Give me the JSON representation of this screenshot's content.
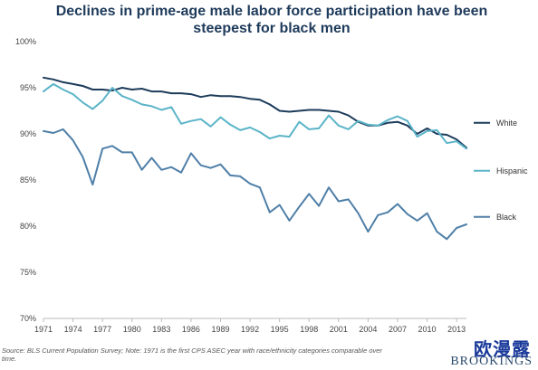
{
  "chart_data": {
    "type": "line",
    "title": "Declines in prime-age male labor force participation have been steepest for black men",
    "xlabel": "",
    "ylabel": "",
    "ylim": [
      70,
      100
    ],
    "xlim": [
      1971,
      2014
    ],
    "y_ticks": [
      70,
      75,
      80,
      85,
      90,
      95,
      100
    ],
    "y_tick_labels": [
      "70%",
      "75%",
      "80%",
      "85%",
      "90%",
      "95%",
      "100%"
    ],
    "x_ticks": [
      1971,
      1974,
      1977,
      1980,
      1983,
      1986,
      1989,
      1992,
      1995,
      1998,
      2001,
      2004,
      2007,
      2010,
      2013
    ],
    "x_tick_labels": [
      "1971",
      "1974",
      "1977",
      "1980",
      "1983",
      "1986",
      "1989",
      "1992",
      "1995",
      "1998",
      "2001",
      "2004",
      "2007",
      "2010",
      "2013"
    ],
    "grid": false,
    "legend": "right",
    "x": [
      1971,
      1972,
      1973,
      1974,
      1975,
      1976,
      1977,
      1978,
      1979,
      1980,
      1981,
      1982,
      1983,
      1984,
      1985,
      1986,
      1987,
      1988,
      1989,
      1990,
      1991,
      1992,
      1993,
      1994,
      1995,
      1996,
      1997,
      1998,
      1999,
      2000,
      2001,
      2002,
      2003,
      2004,
      2005,
      2006,
      2007,
      2008,
      2009,
      2010,
      2011,
      2012,
      2013,
      2014
    ],
    "series": [
      {
        "name": "White",
        "color": "#1c3b5a",
        "values": [
          96.1,
          95.9,
          95.6,
          95.4,
          95.2,
          94.8,
          94.8,
          94.7,
          95.0,
          94.8,
          94.9,
          94.6,
          94.6,
          94.4,
          94.4,
          94.3,
          94.0,
          94.2,
          94.1,
          94.1,
          94.0,
          93.8,
          93.7,
          93.2,
          92.5,
          92.4,
          92.5,
          92.6,
          92.6,
          92.5,
          92.4,
          92.0,
          91.3,
          90.9,
          90.9,
          91.2,
          91.3,
          90.9,
          90.0,
          90.6,
          90.0,
          89.9,
          89.4,
          88.5
        ]
      },
      {
        "name": "Hispanic",
        "color": "#5bb4c8",
        "values": [
          94.6,
          95.4,
          94.8,
          94.3,
          93.4,
          92.7,
          93.6,
          95.0,
          94.1,
          93.7,
          93.2,
          93.0,
          92.6,
          92.9,
          91.1,
          91.4,
          91.6,
          90.8,
          91.8,
          91.0,
          90.4,
          90.7,
          90.2,
          89.5,
          89.8,
          89.7,
          91.3,
          90.5,
          90.6,
          92.0,
          90.9,
          90.5,
          91.4,
          91.0,
          90.9,
          91.5,
          91.9,
          91.4,
          89.7,
          90.3,
          90.4,
          89.0,
          89.2,
          88.4
        ]
      },
      {
        "name": "Black",
        "color": "#4f7fa8",
        "values": [
          90.3,
          90.1,
          90.5,
          89.3,
          87.5,
          84.5,
          88.4,
          88.7,
          88.0,
          88.0,
          86.1,
          87.4,
          86.1,
          86.4,
          85.8,
          87.9,
          86.6,
          86.3,
          86.7,
          85.5,
          85.4,
          84.6,
          84.2,
          81.5,
          82.3,
          80.6,
          82.1,
          83.5,
          82.2,
          84.2,
          82.7,
          82.9,
          81.4,
          79.4,
          81.2,
          81.5,
          82.4,
          81.3,
          80.6,
          81.4,
          79.4,
          78.6,
          79.8,
          80.2
        ]
      }
    ]
  },
  "source_note": "Source: BLS Current Population Survey; Note: 1971 is the first CPS ASEC year with race/ethnicity categories comparable over time.",
  "logo_text": "BROOKINGS",
  "watermark_text": "欧漫露",
  "colors": {
    "title": "#1f3b5b",
    "axis": "#bbbbbb"
  }
}
